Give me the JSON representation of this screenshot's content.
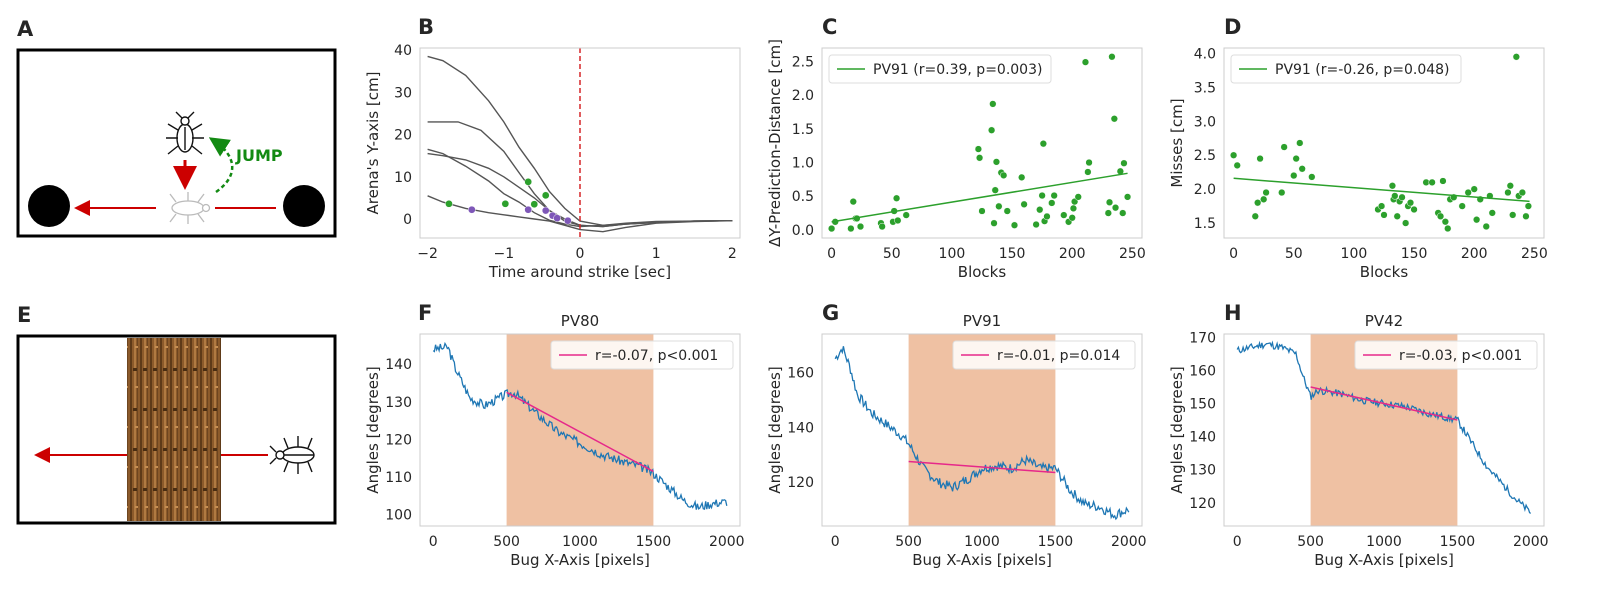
{
  "panel_letters": {
    "A": "A",
    "B": "B",
    "C": "C",
    "D": "D",
    "E": "E",
    "F": "F",
    "G": "G",
    "H": "H"
  },
  "illustrations": {
    "A": {
      "jump_label": "JUMP",
      "colors": {
        "arrow": "#cc0000",
        "jump": "#138a13",
        "ball": "#000000"
      }
    },
    "E": {
      "colors": {
        "arrow": "#cc0000",
        "bark": "#8b5a2b"
      }
    }
  },
  "chart_data": [
    {
      "id": "B",
      "type": "line",
      "xlabel": "Time around strike [sec]",
      "ylabel": "Arena's Y-axis [cm]",
      "xlim": [
        -2.1,
        2.1
      ],
      "ylim": [
        -4.5,
        40.5
      ],
      "xticks": [
        -2,
        -1,
        0,
        1,
        2
      ],
      "yticks": [
        0,
        10,
        20,
        30,
        40
      ],
      "grid": false,
      "vline": {
        "x": 0,
        "color": "#d62728",
        "style": "dashed"
      },
      "line_color": "#555555",
      "series": [
        {
          "x": [
            -2.0,
            -1.8,
            -1.5,
            -1.2,
            -1.0,
            -0.8,
            -0.6,
            -0.4,
            -0.2,
            0.0,
            0.3,
            0.6,
            1.0,
            1.5,
            2.0
          ],
          "y": [
            38.5,
            37.5,
            34,
            28,
            23,
            17,
            12,
            6.5,
            2.5,
            -0.5,
            -1.5,
            -1.2,
            -0.8,
            -0.5,
            -0.4
          ]
        },
        {
          "x": [
            -2.0,
            -1.6,
            -1.3,
            -1.0,
            -0.8,
            -0.6,
            -0.4,
            -0.2,
            0.0,
            0.3,
            0.6,
            1.0,
            1.5,
            2.0
          ],
          "y": [
            23,
            23,
            21,
            16,
            11,
            6,
            2,
            -0.5,
            -1.5,
            -1.8,
            -1.2,
            -0.8,
            -0.5,
            -0.4
          ]
        },
        {
          "x": [
            -2.0,
            -1.8,
            -1.5,
            -1.2,
            -1.0,
            -0.8,
            -0.6,
            -0.4,
            -0.2,
            0.0,
            0.3,
            0.6,
            1.0,
            1.5,
            2.0
          ],
          "y": [
            16.5,
            15.5,
            12.5,
            9,
            6,
            4,
            1.5,
            -0.3,
            -1.2,
            -1.8,
            -1.5,
            -1.0,
            -0.6,
            -0.5,
            -0.4
          ]
        },
        {
          "x": [
            -2.0,
            -1.8,
            -1.5,
            -1.2,
            -1.0,
            -0.8,
            -0.6,
            -0.4,
            -0.2,
            0.0,
            0.3,
            0.6,
            1.0,
            1.5,
            2.0
          ],
          "y": [
            15.5,
            15,
            14,
            12,
            10,
            7.5,
            5,
            2,
            0,
            -1.5,
            -1.8,
            -1.2,
            -0.8,
            -0.5,
            -0.4
          ]
        },
        {
          "x": [
            -2.0,
            -1.8,
            -1.5,
            -1.2,
            -1.0,
            -0.8,
            -0.6,
            -0.4,
            -0.2,
            0.0,
            0.3,
            0.6,
            1.0,
            1.5,
            2.0
          ],
          "y": [
            5.5,
            4,
            2.5,
            1.5,
            1,
            0.5,
            0,
            -0.5,
            -1.5,
            -2.5,
            -3.0,
            -2.0,
            -1.0,
            -0.6,
            -0.4
          ]
        }
      ],
      "green_points": {
        "color": "#2ca02c",
        "x": [
          -1.72,
          -0.98,
          -0.68,
          -0.6,
          -0.45
        ],
        "y": [
          3.6,
          3.6,
          8.8,
          3.5,
          5.6
        ]
      },
      "purple_points": {
        "color": "#7e57b8",
        "x": [
          -1.42,
          -0.68,
          -0.45,
          -0.36,
          -0.3,
          -0.16
        ],
        "y": [
          2.2,
          2.2,
          2.0,
          0.8,
          0.2,
          -0.4
        ]
      }
    },
    {
      "id": "C",
      "type": "scatter",
      "xlabel": "Blocks",
      "ylabel": "ΔY-Prediction-Distance [cm]",
      "xlim": [
        -8,
        258
      ],
      "ylim": [
        -0.12,
        2.7
      ],
      "xticks": [
        0,
        50,
        100,
        150,
        200,
        250
      ],
      "yticks": [
        0.0,
        0.5,
        1.0,
        1.5,
        2.0,
        2.5
      ],
      "ytick_labels": [
        "0.0",
        "0.5",
        "1.0",
        "1.5",
        "2.0",
        "2.5"
      ],
      "color": "#2ca02c",
      "x": [
        0,
        3,
        16,
        18,
        20,
        21,
        24,
        41,
        42,
        51,
        52,
        54,
        55,
        62,
        122,
        123,
        125,
        133,
        134,
        135,
        136,
        137,
        139,
        141,
        143,
        146,
        152,
        158,
        160,
        170,
        173,
        175,
        176,
        177,
        179,
        183,
        185,
        193,
        197,
        200,
        201,
        202,
        205,
        211,
        213,
        214,
        230,
        231,
        233,
        235,
        236,
        240,
        242,
        243,
        246
      ],
      "y": [
        0.02,
        0.12,
        0.02,
        0.42,
        0.17,
        0.17,
        0.05,
        0.1,
        0.05,
        0.12,
        0.28,
        0.47,
        0.14,
        0.22,
        1.2,
        1.07,
        0.28,
        1.48,
        1.87,
        0.1,
        0.59,
        1.01,
        0.35,
        0.85,
        0.81,
        0.28,
        0.07,
        0.78,
        0.38,
        0.08,
        0.3,
        0.51,
        1.28,
        0.13,
        0.2,
        0.4,
        0.51,
        0.22,
        0.12,
        0.18,
        0.32,
        0.42,
        0.49,
        2.49,
        0.86,
        1.0,
        0.25,
        0.41,
        2.57,
        1.65,
        0.33,
        0.87,
        0.25,
        0.99,
        0.49
      ],
      "fit": {
        "x": [
          0,
          246
        ],
        "y": [
          0.12,
          0.84
        ],
        "color": "#2ca02c"
      },
      "legend": {
        "label": "PV91 (r=0.39, p=0.003)",
        "position": "upper-left"
      }
    },
    {
      "id": "D",
      "type": "scatter",
      "xlabel": "Blocks",
      "ylabel": "Misses [cm]",
      "xlim": [
        -8,
        258
      ],
      "ylim": [
        1.28,
        4.08
      ],
      "xticks": [
        0,
        50,
        100,
        150,
        200,
        250
      ],
      "yticks": [
        1.5,
        2.0,
        2.5,
        3.0,
        3.5,
        4.0
      ],
      "ytick_labels": [
        "1.5",
        "2.0",
        "2.5",
        "3.0",
        "3.5",
        "4.0"
      ],
      "color": "#2ca02c",
      "x": [
        0,
        3,
        18,
        20,
        22,
        25,
        27,
        40,
        42,
        50,
        52,
        55,
        57,
        65,
        120,
        123,
        125,
        132,
        133,
        134,
        136,
        138,
        140,
        143,
        145,
        147,
        150,
        160,
        165,
        170,
        172,
        174,
        176,
        178,
        180,
        183,
        190,
        195,
        200,
        202,
        205,
        210,
        213,
        215,
        228,
        230,
        232,
        235,
        237,
        240,
        243,
        245
      ],
      "y": [
        2.5,
        2.35,
        1.6,
        1.8,
        2.45,
        1.85,
        1.95,
        1.95,
        2.62,
        2.2,
        2.45,
        2.68,
        2.3,
        2.18,
        1.7,
        1.75,
        1.62,
        2.05,
        1.85,
        1.9,
        1.6,
        1.82,
        1.88,
        1.5,
        1.75,
        1.8,
        1.7,
        2.1,
        2.1,
        1.65,
        1.6,
        2.12,
        1.52,
        1.42,
        1.85,
        1.88,
        1.75,
        1.95,
        2.0,
        1.55,
        1.85,
        1.45,
        1.9,
        1.65,
        1.95,
        2.05,
        1.62,
        3.95,
        1.9,
        1.95,
        1.6,
        1.75
      ],
      "fit": {
        "x": [
          0,
          246
        ],
        "y": [
          2.16,
          1.82
        ],
        "color": "#2ca02c"
      },
      "legend": {
        "label": "PV91 (r=-0.26, p=0.048)",
        "position": "upper-left"
      }
    },
    {
      "id": "F",
      "type": "line",
      "title": "PV80",
      "xlabel": "Bug X-Axis [pixels]",
      "ylabel": "Angles [degrees]",
      "xlim": [
        -90,
        2090
      ],
      "ylim": [
        97,
        148
      ],
      "xticks": [
        0,
        500,
        1000,
        1500,
        2000
      ],
      "yticks": [
        100,
        110,
        120,
        130,
        140
      ],
      "line_color": "#1f77b4",
      "series_x": [
        0,
        100,
        150,
        250,
        350,
        450,
        500,
        550,
        700,
        850,
        1000,
        1150,
        1300,
        1400,
        1500,
        1600,
        1700,
        1800,
        1900,
        2000
      ],
      "series_y": [
        144,
        144.5,
        139,
        131,
        129,
        131,
        132,
        132.5,
        127,
        122,
        119,
        116,
        114,
        113,
        111,
        107.5,
        104,
        102,
        103,
        103.5
      ],
      "noise": 1.2,
      "seed": 3,
      "span": {
        "x": [
          500,
          1500
        ],
        "color": "#e59866",
        "alpha": 0.6
      },
      "fit": {
        "x": [
          500,
          1500
        ],
        "y": [
          132.5,
          111.5
        ],
        "color": "#e6288a"
      },
      "legend": {
        "label": "r=-0.07, p<0.001",
        "position": "upper-right"
      }
    },
    {
      "id": "G",
      "type": "line",
      "title": "PV91",
      "xlabel": "Bug X-Axis [pixels]",
      "ylabel": "Angles [degrees]",
      "xlim": [
        -90,
        2090
      ],
      "ylim": [
        104,
        174
      ],
      "xticks": [
        0,
        500,
        1000,
        1500,
        2000
      ],
      "yticks": [
        120,
        140,
        160
      ],
      "line_color": "#1f77b4",
      "series_x": [
        0,
        50,
        100,
        150,
        250,
        350,
        450,
        500,
        600,
        700,
        800,
        900,
        1000,
        1100,
        1200,
        1300,
        1400,
        1500,
        1600,
        1700,
        1800,
        1900,
        2000
      ],
      "series_y": [
        165,
        169,
        162,
        152,
        145,
        141,
        137,
        134,
        125,
        120,
        118,
        121,
        125,
        126,
        125,
        128,
        125,
        125,
        117,
        112,
        111,
        108,
        110
      ],
      "noise": 1.8,
      "seed": 7,
      "span": {
        "x": [
          500,
          1500
        ],
        "color": "#e59866",
        "alpha": 0.6
      },
      "fit": {
        "x": [
          500,
          1500
        ],
        "y": [
          127.5,
          123.5
        ],
        "color": "#e6288a"
      },
      "legend": {
        "label": "r=-0.01, p=0.014",
        "position": "upper-right"
      }
    },
    {
      "id": "H",
      "type": "line",
      "title": "PV42",
      "xlabel": "Bug X-Axis [pixels]",
      "ylabel": "Angles [degrees]",
      "xlim": [
        -90,
        2090
      ],
      "ylim": [
        113,
        171
      ],
      "xticks": [
        0,
        500,
        1000,
        1500,
        2000
      ],
      "yticks": [
        120,
        130,
        140,
        150,
        160,
        170
      ],
      "line_color": "#1f77b4",
      "series_x": [
        0,
        100,
        200,
        300,
        400,
        450,
        500,
        550,
        700,
        850,
        1000,
        1150,
        1300,
        1400,
        1500,
        1600,
        1700,
        1800,
        1900,
        2000
      ],
      "series_y": [
        166,
        167,
        168,
        167,
        165,
        158,
        152,
        154,
        153,
        151,
        150,
        149,
        147,
        146,
        145,
        138,
        131,
        126,
        121,
        117
      ],
      "noise": 1.1,
      "seed": 11,
      "span": {
        "x": [
          500,
          1500
        ],
        "color": "#e59866",
        "alpha": 0.6
      },
      "fit": {
        "x": [
          500,
          1500
        ],
        "y": [
          155,
          145
        ],
        "color": "#e6288a"
      },
      "legend": {
        "label": "r=-0.03, p<0.001",
        "position": "upper-right"
      }
    }
  ]
}
